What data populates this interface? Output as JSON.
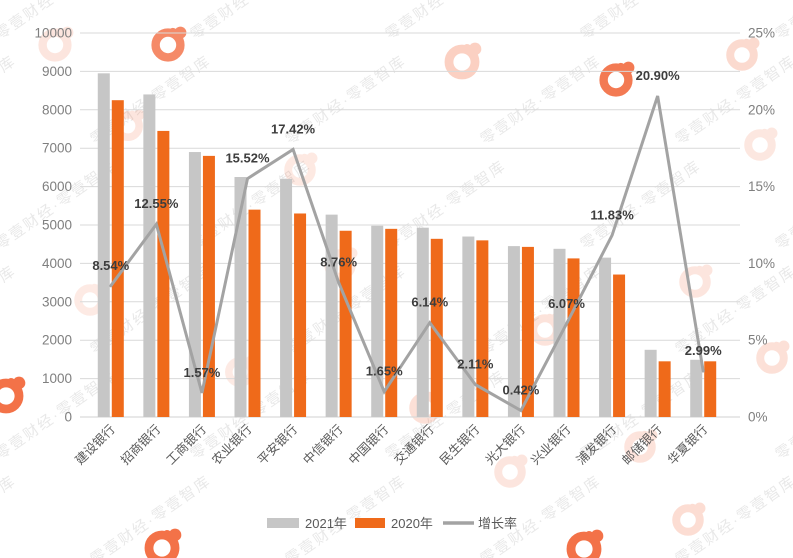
{
  "watermark": {
    "text": "零壹财经·零壹智库",
    "logo_color": "#f15a29",
    "text_color": "#9a9a9a"
  },
  "chart_data": {
    "type": "bar",
    "title": "",
    "categories": [
      "建设银行",
      "招商银行",
      "工商银行",
      "农业银行",
      "平安银行",
      "中信银行",
      "中国银行",
      "交通银行",
      "民生银行",
      "光大银行",
      "兴业银行",
      "浦发银行",
      "邮储银行",
      "华夏银行"
    ],
    "series": [
      {
        "name": "2021年",
        "color": "#c6c6c6",
        "values": [
          8950,
          8400,
          6900,
          6250,
          6200,
          5270,
          4980,
          4930,
          4700,
          4450,
          4380,
          4150,
          1750,
          1490
        ]
      },
      {
        "name": "2020年",
        "color": "#ef6a1a",
        "values": [
          8250,
          7450,
          6800,
          5400,
          5300,
          4850,
          4900,
          4640,
          4600,
          4430,
          4130,
          3710,
          1450,
          1450
        ]
      }
    ],
    "line_series": {
      "name": "增长率",
      "color": "#a3a3a3",
      "values": [
        8.54,
        12.55,
        1.57,
        15.52,
        17.42,
        8.76,
        1.65,
        6.14,
        2.11,
        0.42,
        6.07,
        11.83,
        20.9,
        2.99
      ],
      "labels": [
        "8.54%",
        "12.55%",
        "1.57%",
        "15.52%",
        "17.42%",
        "8.76%",
        "1.65%",
        "6.14%",
        "2.11%",
        "0.42%",
        "6.07%",
        "11.83%",
        "20.90%",
        "2.99%"
      ]
    },
    "left_axis": {
      "min": 0,
      "max": 10000,
      "step": 1000,
      "ticks": [
        "0",
        "1000",
        "2000",
        "3000",
        "4000",
        "5000",
        "6000",
        "7000",
        "8000",
        "9000",
        "10000"
      ]
    },
    "right_axis": {
      "min": 0,
      "max": 25,
      "step": 5,
      "ticks": [
        "0%",
        "5%",
        "10%",
        "15%",
        "20%",
        "25%"
      ]
    },
    "legend": [
      "2021年",
      "2020年",
      "增长率"
    ],
    "legend_position": "bottom",
    "grid": true,
    "label_color": "#3d3d3d",
    "axis_text_color": "#7f7f7f",
    "category_text_color": "#595959",
    "grid_color": "#d9d9d9"
  }
}
